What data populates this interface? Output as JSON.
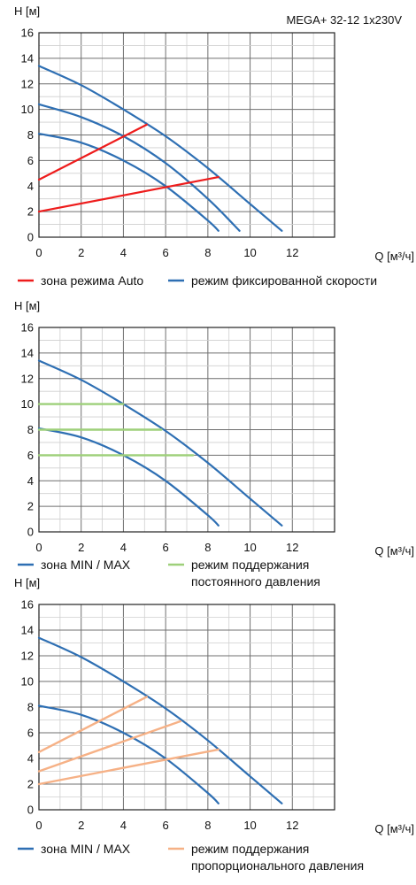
{
  "colors": {
    "blue": "#2e6fb3",
    "red": "#ee1c1c",
    "green": "#9ed07a",
    "orange": "#f6b186",
    "grid": "#9a9a9a"
  },
  "chart_data": [
    {
      "type": "line",
      "title": "MEGA+ 32-12 1x230V",
      "ylabel": "H [м]",
      "xlabel": "Q [м³/ч]",
      "xlim": [
        0,
        14
      ],
      "ylim": [
        0,
        16
      ],
      "xticks": [
        "0",
        "2",
        "4",
        "6",
        "8",
        "10",
        "12"
      ],
      "yticks": [
        "0",
        "2",
        "4",
        "6",
        "8",
        "10",
        "12",
        "14",
        "16"
      ],
      "grid": true,
      "series": [
        {
          "group": "blue",
          "x": [
            0,
            2,
            4,
            6,
            8,
            10,
            11.5
          ],
          "y": [
            13.4,
            11.9,
            10.0,
            7.9,
            5.4,
            2.6,
            0.5
          ]
        },
        {
          "group": "blue",
          "x": [
            0,
            2,
            4,
            6,
            8,
            9.5
          ],
          "y": [
            10.4,
            9.4,
            7.9,
            5.8,
            3.0,
            0.5
          ]
        },
        {
          "group": "blue",
          "x": [
            0,
            2,
            4,
            6,
            8,
            8.5
          ],
          "y": [
            8.1,
            7.4,
            6.0,
            4.0,
            1.3,
            0.5
          ]
        },
        {
          "group": "red",
          "x": [
            0,
            5.1
          ],
          "y": [
            4.5,
            8.8
          ]
        },
        {
          "group": "red",
          "x": [
            0,
            8.5
          ],
          "y": [
            2.0,
            4.7
          ]
        }
      ],
      "legend": [
        {
          "group": "red",
          "label": "зона режима Auto"
        },
        {
          "group": "blue",
          "label": "режим фиксированной скорости"
        }
      ]
    },
    {
      "type": "line",
      "title": "",
      "ylabel": "H [м]",
      "xlabel": "Q [м³/ч]",
      "xlim": [
        0,
        14
      ],
      "ylim": [
        0,
        16
      ],
      "xticks": [
        "0",
        "2",
        "4",
        "6",
        "8",
        "10",
        "12"
      ],
      "yticks": [
        "0",
        "2",
        "4",
        "6",
        "8",
        "10",
        "12",
        "14",
        "16"
      ],
      "grid": true,
      "series": [
        {
          "group": "blue",
          "x": [
            0,
            2,
            4,
            6,
            8,
            10,
            11.5
          ],
          "y": [
            13.4,
            11.9,
            10.0,
            7.9,
            5.4,
            2.6,
            0.5
          ]
        },
        {
          "group": "blue",
          "x": [
            0,
            2,
            4,
            6,
            8,
            8.5
          ],
          "y": [
            8.1,
            7.4,
            6.0,
            4.0,
            1.3,
            0.5
          ]
        },
        {
          "group": "green",
          "x": [
            0,
            4.0
          ],
          "y": [
            10,
            10
          ]
        },
        {
          "group": "green",
          "x": [
            0,
            5.8
          ],
          "y": [
            8,
            8
          ]
        },
        {
          "group": "green",
          "x": [
            0,
            7.3
          ],
          "y": [
            6,
            6
          ]
        }
      ],
      "legend": [
        {
          "group": "blue",
          "label": "зона MIN / MAX"
        },
        {
          "group": "green",
          "label": "режим поддержания",
          "label2": "постоянного давления"
        }
      ]
    },
    {
      "type": "line",
      "title": "",
      "ylabel": "H [м]",
      "xlabel": "Q [м³/ч]",
      "xlim": [
        0,
        14
      ],
      "ylim": [
        0,
        16
      ],
      "xticks": [
        "0",
        "2",
        "4",
        "6",
        "8",
        "10",
        "12"
      ],
      "yticks": [
        "0",
        "2",
        "4",
        "6",
        "8",
        "10",
        "12",
        "14",
        "16"
      ],
      "grid": true,
      "series": [
        {
          "group": "blue",
          "x": [
            0,
            2,
            4,
            6,
            8,
            10,
            11.5
          ],
          "y": [
            13.4,
            11.9,
            10.0,
            7.9,
            5.4,
            2.6,
            0.5
          ]
        },
        {
          "group": "blue",
          "x": [
            0,
            2,
            4,
            6,
            8,
            8.5
          ],
          "y": [
            8.1,
            7.4,
            6.0,
            4.0,
            1.3,
            0.5
          ]
        },
        {
          "group": "orange",
          "x": [
            0,
            5.1
          ],
          "y": [
            4.5,
            8.8
          ]
        },
        {
          "group": "orange",
          "x": [
            0,
            6.7
          ],
          "y": [
            3.0,
            6.9
          ]
        },
        {
          "group": "orange",
          "x": [
            0,
            8.5
          ],
          "y": [
            2.0,
            4.7
          ]
        }
      ],
      "legend": [
        {
          "group": "blue",
          "label": "зона MIN / MAX"
        },
        {
          "group": "orange",
          "label": "режим поддержания",
          "label2": "пропорционального давления"
        }
      ]
    }
  ]
}
